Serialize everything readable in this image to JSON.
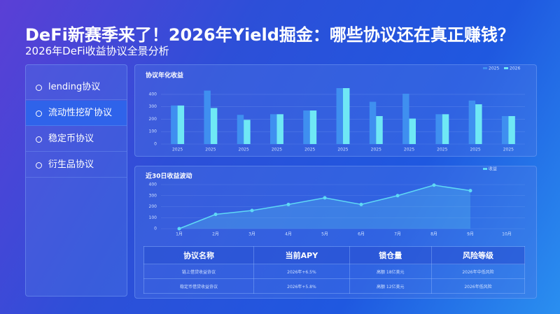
{
  "header": {
    "title": "DeFi新赛季来了！2026年Yield掘金：哪些协议还在真正赚钱？",
    "subtitle": "2026年DeFi收益协议全景分析"
  },
  "sidebar": {
    "items": [
      "lending协议",
      "流动性挖矿协议",
      "稳定币协议",
      "衍生品协议"
    ],
    "active": 1
  },
  "chart_data": [
    {
      "type": "bar",
      "title": "协议年化收益",
      "categories": [
        "2025",
        "2025",
        "2025",
        "2025",
        "2025",
        "2025",
        "2025",
        "2025",
        "2025",
        "2025",
        "2025"
      ],
      "series": [
        {
          "name": "2025",
          "color": "#3f8ff0",
          "values": [
            310,
            430,
            235,
            240,
            270,
            450,
            340,
            405,
            240,
            350,
            225
          ]
        },
        {
          "name": "2026",
          "color": "#6fe8f5",
          "values": [
            310,
            290,
            195,
            240,
            270,
            450,
            225,
            205,
            240,
            320,
            225
          ]
        }
      ],
      "ylim": [
        0,
        450
      ],
      "yticks": [
        0,
        100,
        200,
        300,
        400
      ],
      "grid": true,
      "legend": "top-right"
    },
    {
      "type": "line",
      "title": "近30日收益波动",
      "categories": [
        "1月",
        "2月",
        "3月",
        "4月",
        "5月",
        "6月",
        "7月",
        "8月",
        "9月",
        "10月"
      ],
      "series": [
        {
          "name": "收益",
          "color": "#5fd9f5",
          "values": [
            0,
            130,
            165,
            220,
            280,
            220,
            300,
            395,
            345,
            null
          ]
        }
      ],
      "ylim": [
        0,
        400
      ],
      "yticks": [
        0,
        100,
        200,
        300,
        400
      ],
      "grid": true,
      "legend": "top-right"
    }
  ],
  "table": {
    "columns": [
      "协议名称",
      "当前APY",
      "锁仓量",
      "风险等级"
    ],
    "rows": [
      [
        "链上借贷收益协议",
        "2026年+6.5%",
        "高额 18亿美元",
        "2026年中低风险"
      ],
      [
        "稳定币借贷收益协议",
        "2026年+5.8%",
        "高额 12亿美元",
        "2026年低风险"
      ]
    ]
  }
}
